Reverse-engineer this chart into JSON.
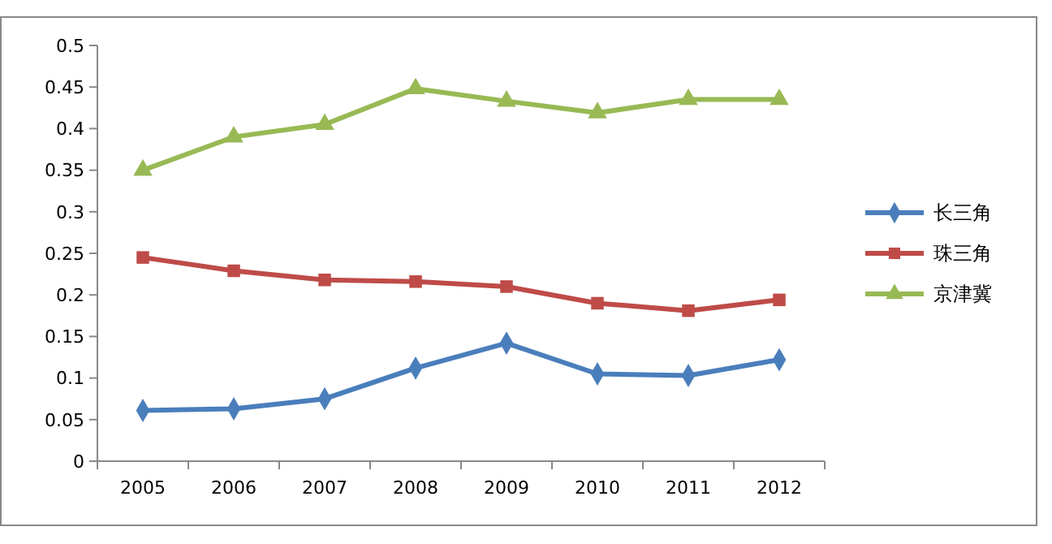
{
  "chart_data": {
    "type": "line",
    "categories": [
      "2005",
      "2006",
      "2007",
      "2008",
      "2009",
      "2010",
      "2011",
      "2012"
    ],
    "series": [
      {
        "name": "长三角",
        "color": "#4a7ebb",
        "marker": "diamond",
        "values": [
          0.061,
          0.063,
          0.075,
          0.112,
          0.142,
          0.105,
          0.103,
          0.122
        ]
      },
      {
        "name": "珠三角",
        "color": "#be4b48",
        "marker": "square",
        "values": [
          0.245,
          0.229,
          0.218,
          0.216,
          0.21,
          0.19,
          0.181,
          0.194
        ]
      },
      {
        "name": "京津冀",
        "color": "#98b954",
        "marker": "triangle",
        "values": [
          0.35,
          0.39,
          0.405,
          0.448,
          0.433,
          0.419,
          0.435,
          0.435
        ]
      }
    ],
    "ylim": [
      0,
      0.5
    ],
    "yticks": [
      {
        "value": 0,
        "label": "0"
      },
      {
        "value": 0.05,
        "label": "0.05"
      },
      {
        "value": 0.1,
        "label": "0.1"
      },
      {
        "value": 0.15,
        "label": "0.15"
      },
      {
        "value": 0.2,
        "label": "0.2"
      },
      {
        "value": 0.25,
        "label": "0.25"
      },
      {
        "value": 0.3,
        "label": "0.3"
      },
      {
        "value": 0.35,
        "label": "0.35"
      },
      {
        "value": 0.4,
        "label": "0.4"
      },
      {
        "value": 0.45,
        "label": "0.45"
      },
      {
        "value": 0.5,
        "label": "0.5"
      }
    ],
    "grid": false,
    "legend": "right",
    "line_style": "solid"
  }
}
